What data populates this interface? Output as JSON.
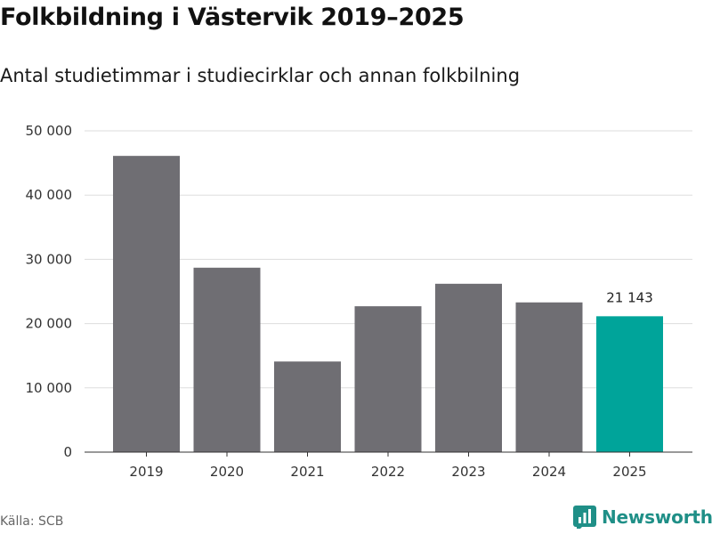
{
  "header": {
    "title": "Folkbildning i Västervik 2019–2025",
    "subtitle": "Antal studietimmar i studiecirklar och annan folkbilning"
  },
  "footer": {
    "source": "Källa: SCB",
    "brand": "Newsworthy",
    "brand_icon": "bar-chart-logo-icon",
    "brand_color": "#1f8f87"
  },
  "chart_data": {
    "type": "bar",
    "categories": [
      "2019",
      "2020",
      "2021",
      "2022",
      "2023",
      "2024",
      "2025"
    ],
    "values": [
      46100,
      28700,
      14100,
      22700,
      26200,
      23300,
      21143
    ],
    "highlight_index": 6,
    "data_labels": [
      {
        "index": 6,
        "text": "21 143"
      }
    ],
    "ylim": [
      0,
      50000
    ],
    "yticks": [
      0,
      10000,
      20000,
      30000,
      40000,
      50000
    ],
    "ytick_labels": [
      "0",
      "10 000",
      "20 000",
      "30 000",
      "40 000",
      "50 000"
    ],
    "grid": true,
    "colors": {
      "bar": "#6f6e73",
      "highlight": "#00a49a",
      "grid": "#dddddd",
      "axis": "#333333"
    }
  }
}
